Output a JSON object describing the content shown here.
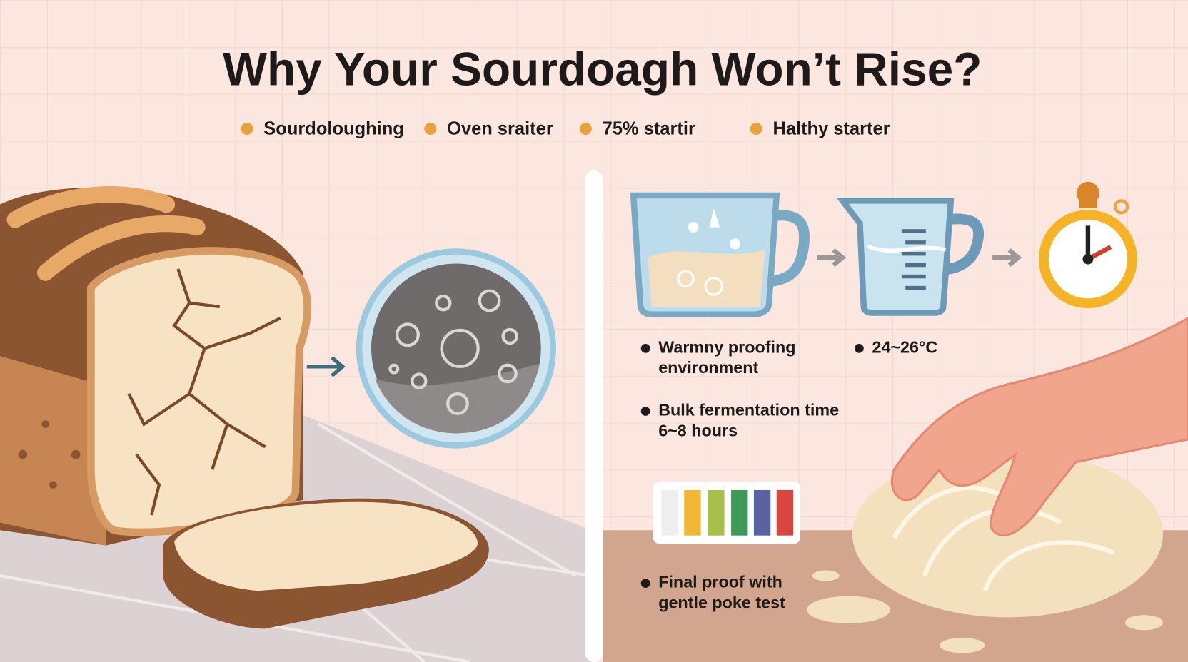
{
  "title": "Why Your Sourdoagh Won’t Rise?",
  "legend": [
    "Sourdoloughing",
    "Oven sraiter",
    "75% startir",
    "Halthy starter"
  ],
  "notes": [
    {
      "lines": [
        "Warmny proofing",
        "environment"
      ]
    },
    {
      "lines": [
        "24~26°C"
      ]
    },
    {
      "lines": [
        "Bulk fermentation time",
        "6~8 hours"
      ]
    },
    {
      "lines": [
        "Final proof with",
        "gentle poke test"
      ]
    }
  ]
}
